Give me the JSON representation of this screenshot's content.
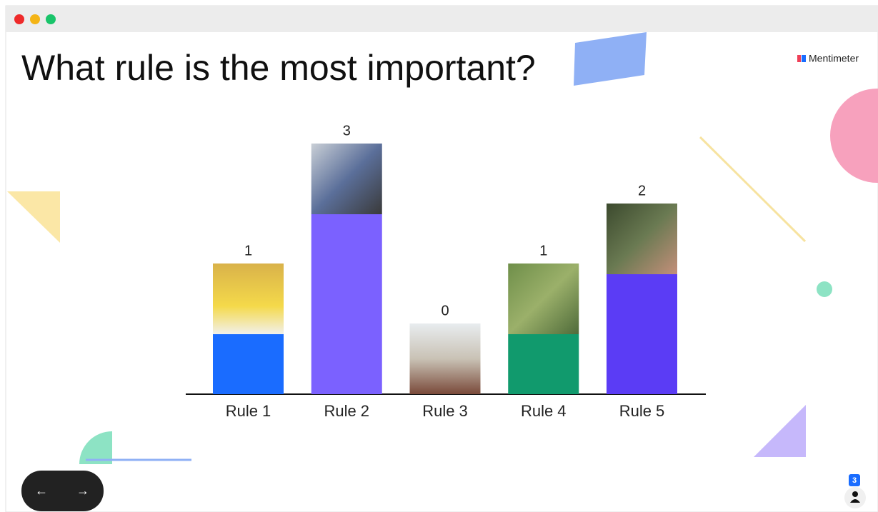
{
  "chart_data": {
    "type": "bar",
    "title": "What rule is the most important?",
    "categories": [
      "Rule 1",
      "Rule 2",
      "Rule 3",
      "Rule 4",
      "Rule 5"
    ],
    "values": [
      1,
      3,
      0,
      1,
      2
    ],
    "colors": [
      "#1a6cff",
      "#7b61ff",
      "#4a3aff",
      "#119a6d",
      "#5b3cf5"
    ]
  },
  "ui": {
    "brand": "Mentimeter",
    "participants": 3
  }
}
